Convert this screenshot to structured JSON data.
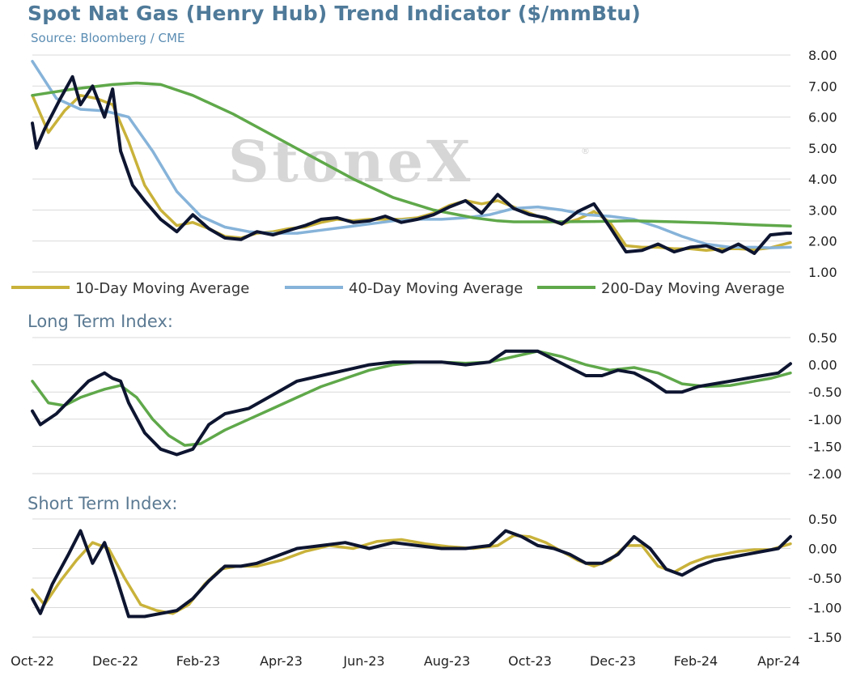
{
  "header": {
    "title": "Spot Nat Gas (Henry Hub) Trend Indicator ($/mmBtu)",
    "source": "Source: Bloomberg / CME"
  },
  "watermark": "StoneX",
  "watermark_mark": "®",
  "colors": {
    "spot": "#0d1530",
    "ma10": "#c9b23a",
    "ma40": "#86b3d9",
    "ma200": "#5fa84a",
    "grid": "#d9d9d9"
  },
  "x_ticks": [
    "Oct-22",
    "Dec-22",
    "Feb-23",
    "Apr-23",
    "Jun-23",
    "Aug-23",
    "Oct-23",
    "Dec-23",
    "Feb-24",
    "Apr-24"
  ],
  "chart_data": [
    {
      "type": "line",
      "title": "Spot Nat Gas (Henry Hub) Trend Indicator ($/mmBtu)",
      "ylim": [
        1,
        8
      ],
      "yticks": [
        "8.00",
        "7.00",
        "6.00",
        "5.00",
        "4.00",
        "3.00",
        "2.00",
        "1.00"
      ],
      "legend_position": "bottom",
      "grid": true,
      "series": [
        {
          "name": "",
          "color_key": "spot",
          "x": [
            0,
            0.05,
            0.15,
            0.35,
            0.5,
            0.6,
            0.75,
            0.9,
            1.0,
            1.1,
            1.25,
            1.4,
            1.6,
            1.8,
            2.0,
            2.2,
            2.4,
            2.6,
            2.8,
            3.0,
            3.2,
            3.4,
            3.6,
            3.8,
            4.0,
            4.2,
            4.4,
            4.6,
            4.8,
            5.0,
            5.2,
            5.4,
            5.6,
            5.8,
            6.0,
            6.2,
            6.4,
            6.6,
            6.8,
            7.0,
            7.2,
            7.4,
            7.6,
            7.8,
            8.0,
            8.2,
            8.4,
            8.6,
            8.8,
            9.0,
            9.2,
            9.4,
            9.45
          ],
          "y": [
            5.8,
            5.0,
            5.6,
            6.6,
            7.3,
            6.4,
            7.0,
            6.0,
            6.9,
            4.9,
            3.8,
            3.3,
            2.7,
            2.3,
            2.85,
            2.4,
            2.1,
            2.05,
            2.3,
            2.2,
            2.35,
            2.5,
            2.7,
            2.75,
            2.6,
            2.65,
            2.8,
            2.6,
            2.7,
            2.85,
            3.1,
            3.3,
            2.9,
            3.5,
            3.05,
            2.85,
            2.75,
            2.55,
            2.95,
            3.2,
            2.45,
            1.65,
            1.7,
            1.9,
            1.65,
            1.8,
            1.85,
            1.65,
            1.9,
            1.6,
            2.2,
            2.25,
            2.25
          ]
        },
        {
          "name": "10-Day Moving Average",
          "color_key": "ma10",
          "x": [
            0,
            0.2,
            0.4,
            0.6,
            0.8,
            1.0,
            1.2,
            1.4,
            1.6,
            1.8,
            2.0,
            2.2,
            2.4,
            2.6,
            2.8,
            3.0,
            3.2,
            3.4,
            3.6,
            3.8,
            4.0,
            4.2,
            4.4,
            4.6,
            4.8,
            5.0,
            5.2,
            5.4,
            5.6,
            5.8,
            6.0,
            6.2,
            6.4,
            6.6,
            6.8,
            7.0,
            7.2,
            7.4,
            7.6,
            7.8,
            8.0,
            8.2,
            8.4,
            8.6,
            8.8,
            9.0,
            9.2,
            9.45
          ],
          "y": [
            6.7,
            5.5,
            6.2,
            6.7,
            6.6,
            6.4,
            5.2,
            3.8,
            3.0,
            2.5,
            2.6,
            2.4,
            2.15,
            2.1,
            2.25,
            2.3,
            2.4,
            2.45,
            2.6,
            2.7,
            2.65,
            2.7,
            2.7,
            2.7,
            2.75,
            2.9,
            3.15,
            3.3,
            3.2,
            3.3,
            3.1,
            2.9,
            2.7,
            2.55,
            2.7,
            2.95,
            2.6,
            1.85,
            1.8,
            1.8,
            1.75,
            1.75,
            1.7,
            1.75,
            1.75,
            1.72,
            1.78,
            1.95
          ]
        },
        {
          "name": "40-Day Moving Average",
          "color_key": "ma40",
          "x": [
            0,
            0.3,
            0.6,
            0.9,
            1.2,
            1.5,
            1.8,
            2.1,
            2.4,
            2.7,
            3.0,
            3.3,
            3.6,
            3.9,
            4.2,
            4.5,
            4.8,
            5.1,
            5.4,
            5.7,
            6.0,
            6.3,
            6.6,
            6.9,
            7.2,
            7.5,
            7.8,
            8.1,
            8.4,
            8.7,
            9.0,
            9.2,
            9.45
          ],
          "y": [
            7.8,
            6.6,
            6.25,
            6.2,
            6.0,
            4.9,
            3.6,
            2.8,
            2.45,
            2.3,
            2.25,
            2.25,
            2.35,
            2.45,
            2.55,
            2.65,
            2.7,
            2.7,
            2.75,
            2.85,
            3.05,
            3.1,
            3.0,
            2.85,
            2.8,
            2.7,
            2.45,
            2.15,
            1.9,
            1.8,
            1.8,
            1.78,
            1.8
          ]
        },
        {
          "name": "200-Day Moving Average",
          "color_key": "ma200",
          "x": [
            0,
            0.5,
            1.0,
            1.3,
            1.6,
            2.0,
            2.5,
            3.0,
            3.5,
            4.0,
            4.5,
            5.0,
            5.5,
            5.8,
            6.0,
            6.5,
            7.0,
            7.5,
            8.0,
            8.5,
            9.0,
            9.45
          ],
          "y": [
            6.7,
            6.9,
            7.05,
            7.1,
            7.05,
            6.7,
            6.1,
            5.4,
            4.7,
            4.0,
            3.4,
            3.0,
            2.75,
            2.65,
            2.62,
            2.62,
            2.63,
            2.65,
            2.62,
            2.58,
            2.52,
            2.48
          ]
        }
      ]
    },
    {
      "type": "line",
      "title": "Long Term Index:",
      "ylim": [
        -2,
        0.5
      ],
      "yticks": [
        "0.50",
        "0.00",
        "-0.50",
        "-1.00",
        "-1.50",
        "-2.00"
      ],
      "grid": true,
      "series": [
        {
          "name": "",
          "color_key": "spot",
          "x": [
            0,
            0.1,
            0.3,
            0.5,
            0.7,
            0.9,
            1.0,
            1.1,
            1.2,
            1.4,
            1.6,
            1.8,
            2.0,
            2.2,
            2.4,
            2.7,
            3.0,
            3.3,
            3.6,
            3.9,
            4.2,
            4.5,
            4.8,
            5.1,
            5.4,
            5.7,
            5.9,
            6.1,
            6.3,
            6.5,
            6.7,
            6.9,
            7.1,
            7.3,
            7.5,
            7.7,
            7.9,
            8.1,
            8.3,
            8.5,
            8.7,
            8.9,
            9.1,
            9.3,
            9.45
          ],
          "y": [
            -0.85,
            -1.1,
            -0.9,
            -0.6,
            -0.3,
            -0.15,
            -0.25,
            -0.3,
            -0.7,
            -1.25,
            -1.55,
            -1.65,
            -1.55,
            -1.1,
            -0.9,
            -0.8,
            -0.55,
            -0.3,
            -0.2,
            -0.1,
            0.0,
            0.05,
            0.05,
            0.05,
            0.0,
            0.05,
            0.25,
            0.25,
            0.25,
            0.1,
            -0.05,
            -0.2,
            -0.2,
            -0.1,
            -0.15,
            -0.3,
            -0.5,
            -0.5,
            -0.4,
            -0.35,
            -0.3,
            -0.25,
            -0.2,
            -0.15,
            0.02
          ]
        },
        {
          "name": "",
          "color_key": "ma200",
          "x": [
            0,
            0.2,
            0.4,
            0.6,
            0.9,
            1.1,
            1.3,
            1.5,
            1.7,
            1.9,
            2.1,
            2.4,
            2.7,
            3.0,
            3.3,
            3.6,
            3.9,
            4.2,
            4.5,
            4.8,
            5.1,
            5.4,
            5.7,
            6.0,
            6.3,
            6.6,
            6.9,
            7.2,
            7.5,
            7.8,
            8.1,
            8.4,
            8.7,
            9.0,
            9.2,
            9.45
          ],
          "y": [
            -0.3,
            -0.7,
            -0.75,
            -0.6,
            -0.45,
            -0.38,
            -0.6,
            -1.0,
            -1.3,
            -1.48,
            -1.45,
            -1.2,
            -1.0,
            -0.8,
            -0.6,
            -0.4,
            -0.25,
            -0.1,
            0.0,
            0.05,
            0.05,
            0.03,
            0.05,
            0.15,
            0.25,
            0.15,
            0.0,
            -0.1,
            -0.05,
            -0.15,
            -0.35,
            -0.4,
            -0.38,
            -0.3,
            -0.25,
            -0.15
          ]
        }
      ]
    },
    {
      "type": "line",
      "title": "Short Term Index:",
      "ylim": [
        -1.5,
        0.5
      ],
      "yticks": [
        "0.50",
        "0.00",
        "-0.50",
        "-1.00",
        "-1.50"
      ],
      "grid": true,
      "series": [
        {
          "name": "",
          "color_key": "spot",
          "x": [
            0,
            0.1,
            0.25,
            0.45,
            0.6,
            0.75,
            0.9,
            1.05,
            1.2,
            1.4,
            1.6,
            1.8,
            2.0,
            2.2,
            2.4,
            2.6,
            2.8,
            3.0,
            3.3,
            3.6,
            3.9,
            4.2,
            4.5,
            4.8,
            5.1,
            5.4,
            5.7,
            5.9,
            6.1,
            6.3,
            6.5,
            6.7,
            6.9,
            7.1,
            7.3,
            7.5,
            7.7,
            7.9,
            8.1,
            8.3,
            8.5,
            8.7,
            8.9,
            9.1,
            9.3,
            9.45
          ],
          "y": [
            -0.85,
            -1.1,
            -0.6,
            -0.1,
            0.3,
            -0.25,
            0.1,
            -0.5,
            -1.15,
            -1.15,
            -1.1,
            -1.05,
            -0.85,
            -0.55,
            -0.3,
            -0.3,
            -0.25,
            -0.15,
            0.0,
            0.05,
            0.1,
            0.0,
            0.1,
            0.05,
            0.0,
            0.0,
            0.05,
            0.3,
            0.2,
            0.05,
            0.0,
            -0.1,
            -0.25,
            -0.25,
            -0.1,
            0.2,
            0.0,
            -0.35,
            -0.45,
            -0.3,
            -0.2,
            -0.15,
            -0.1,
            -0.05,
            0.0,
            0.2
          ]
        },
        {
          "name": "",
          "color_key": "ma10",
          "x": [
            0,
            0.15,
            0.35,
            0.55,
            0.75,
            0.95,
            1.15,
            1.35,
            1.55,
            1.75,
            1.95,
            2.15,
            2.35,
            2.55,
            2.8,
            3.1,
            3.4,
            3.7,
            4.0,
            4.3,
            4.6,
            4.9,
            5.2,
            5.5,
            5.8,
            6.0,
            6.2,
            6.4,
            6.6,
            6.8,
            7.0,
            7.2,
            7.4,
            7.6,
            7.8,
            8.0,
            8.2,
            8.4,
            8.6,
            8.8,
            9.0,
            9.2,
            9.45
          ],
          "y": [
            -0.7,
            -0.95,
            -0.55,
            -0.2,
            0.1,
            0.0,
            -0.5,
            -0.95,
            -1.05,
            -1.1,
            -0.95,
            -0.6,
            -0.35,
            -0.3,
            -0.3,
            -0.2,
            -0.05,
            0.05,
            0.0,
            0.12,
            0.15,
            0.08,
            0.03,
            0.0,
            0.05,
            0.22,
            0.2,
            0.1,
            -0.05,
            -0.2,
            -0.3,
            -0.2,
            0.05,
            0.05,
            -0.3,
            -0.4,
            -0.25,
            -0.15,
            -0.1,
            -0.05,
            -0.02,
            -0.02,
            0.08
          ]
        }
      ]
    }
  ]
}
